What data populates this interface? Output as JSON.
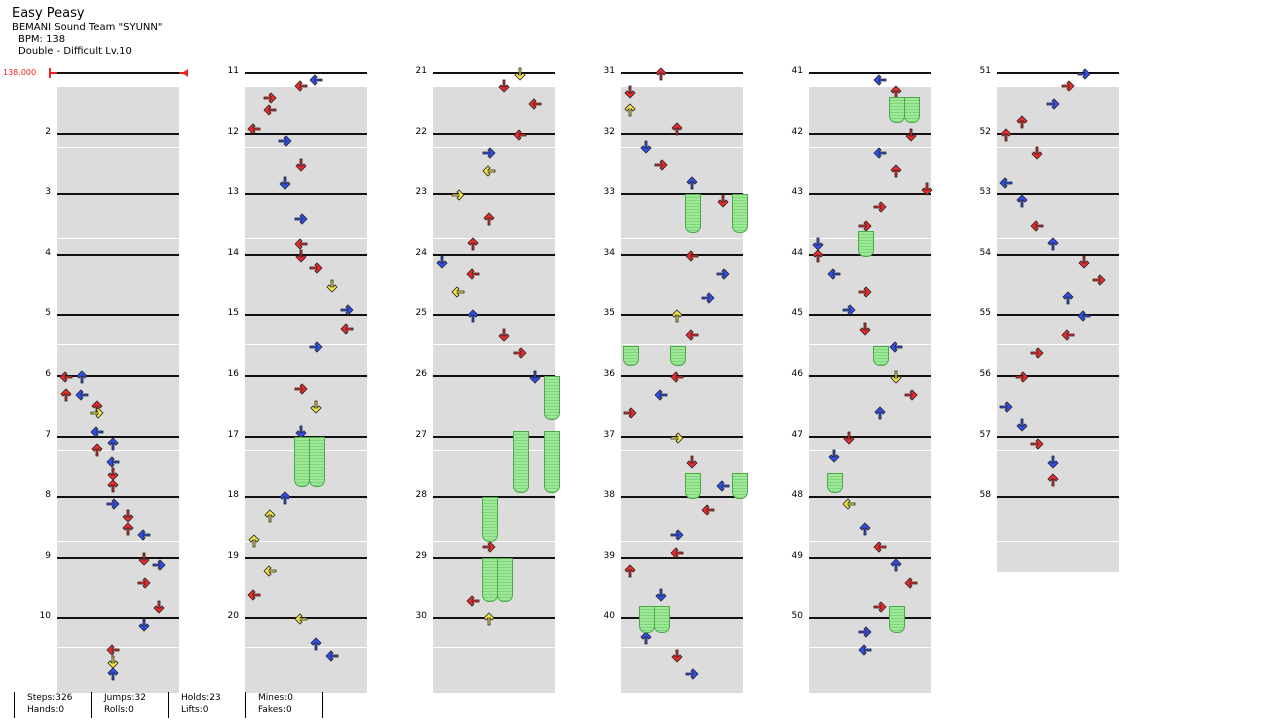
{
  "header": {
    "title": "Easy Peasy",
    "artist": "BEMANI Sound Team \"SYUNN\"",
    "bpm": "BPM: 138",
    "difficulty": "Double - Difficult Lv.10"
  },
  "bpm_marker": "138.000",
  "measures": [
    "2",
    "3",
    "4",
    "5",
    "6",
    "7",
    "8",
    "9",
    "10",
    "11",
    "12",
    "13",
    "14",
    "15",
    "16",
    "17",
    "18",
    "19",
    "20",
    "21",
    "22",
    "23",
    "24",
    "25",
    "26",
    "27",
    "28",
    "29",
    "30",
    "31",
    "32",
    "33",
    "34",
    "35",
    "36",
    "37",
    "38",
    "39",
    "40",
    "41",
    "42",
    "43",
    "44",
    "45",
    "46",
    "47",
    "48",
    "49",
    "50",
    "51",
    "52",
    "53",
    "54",
    "55",
    "56",
    "57",
    "58"
  ],
  "icons": {
    "left": "left-arrow-icon",
    "down": "down-arrow-icon",
    "up": "up-arrow-icon",
    "right": "right-arrow-icon"
  },
  "colors": {
    "red": "#ee2a2a",
    "blue": "#2f4fee",
    "yellow": "#f2e24a",
    "hold": "#9fe89a"
  },
  "stats": {
    "steps": "Steps:326",
    "hands": "Hands:0",
    "jumps": "Jumps:32",
    "rolls": "Rolls:0",
    "holds": "Holds:23",
    "lifts": "Lifts:0",
    "mines": "Mines:0",
    "fakes": "Fakes:0"
  }
}
